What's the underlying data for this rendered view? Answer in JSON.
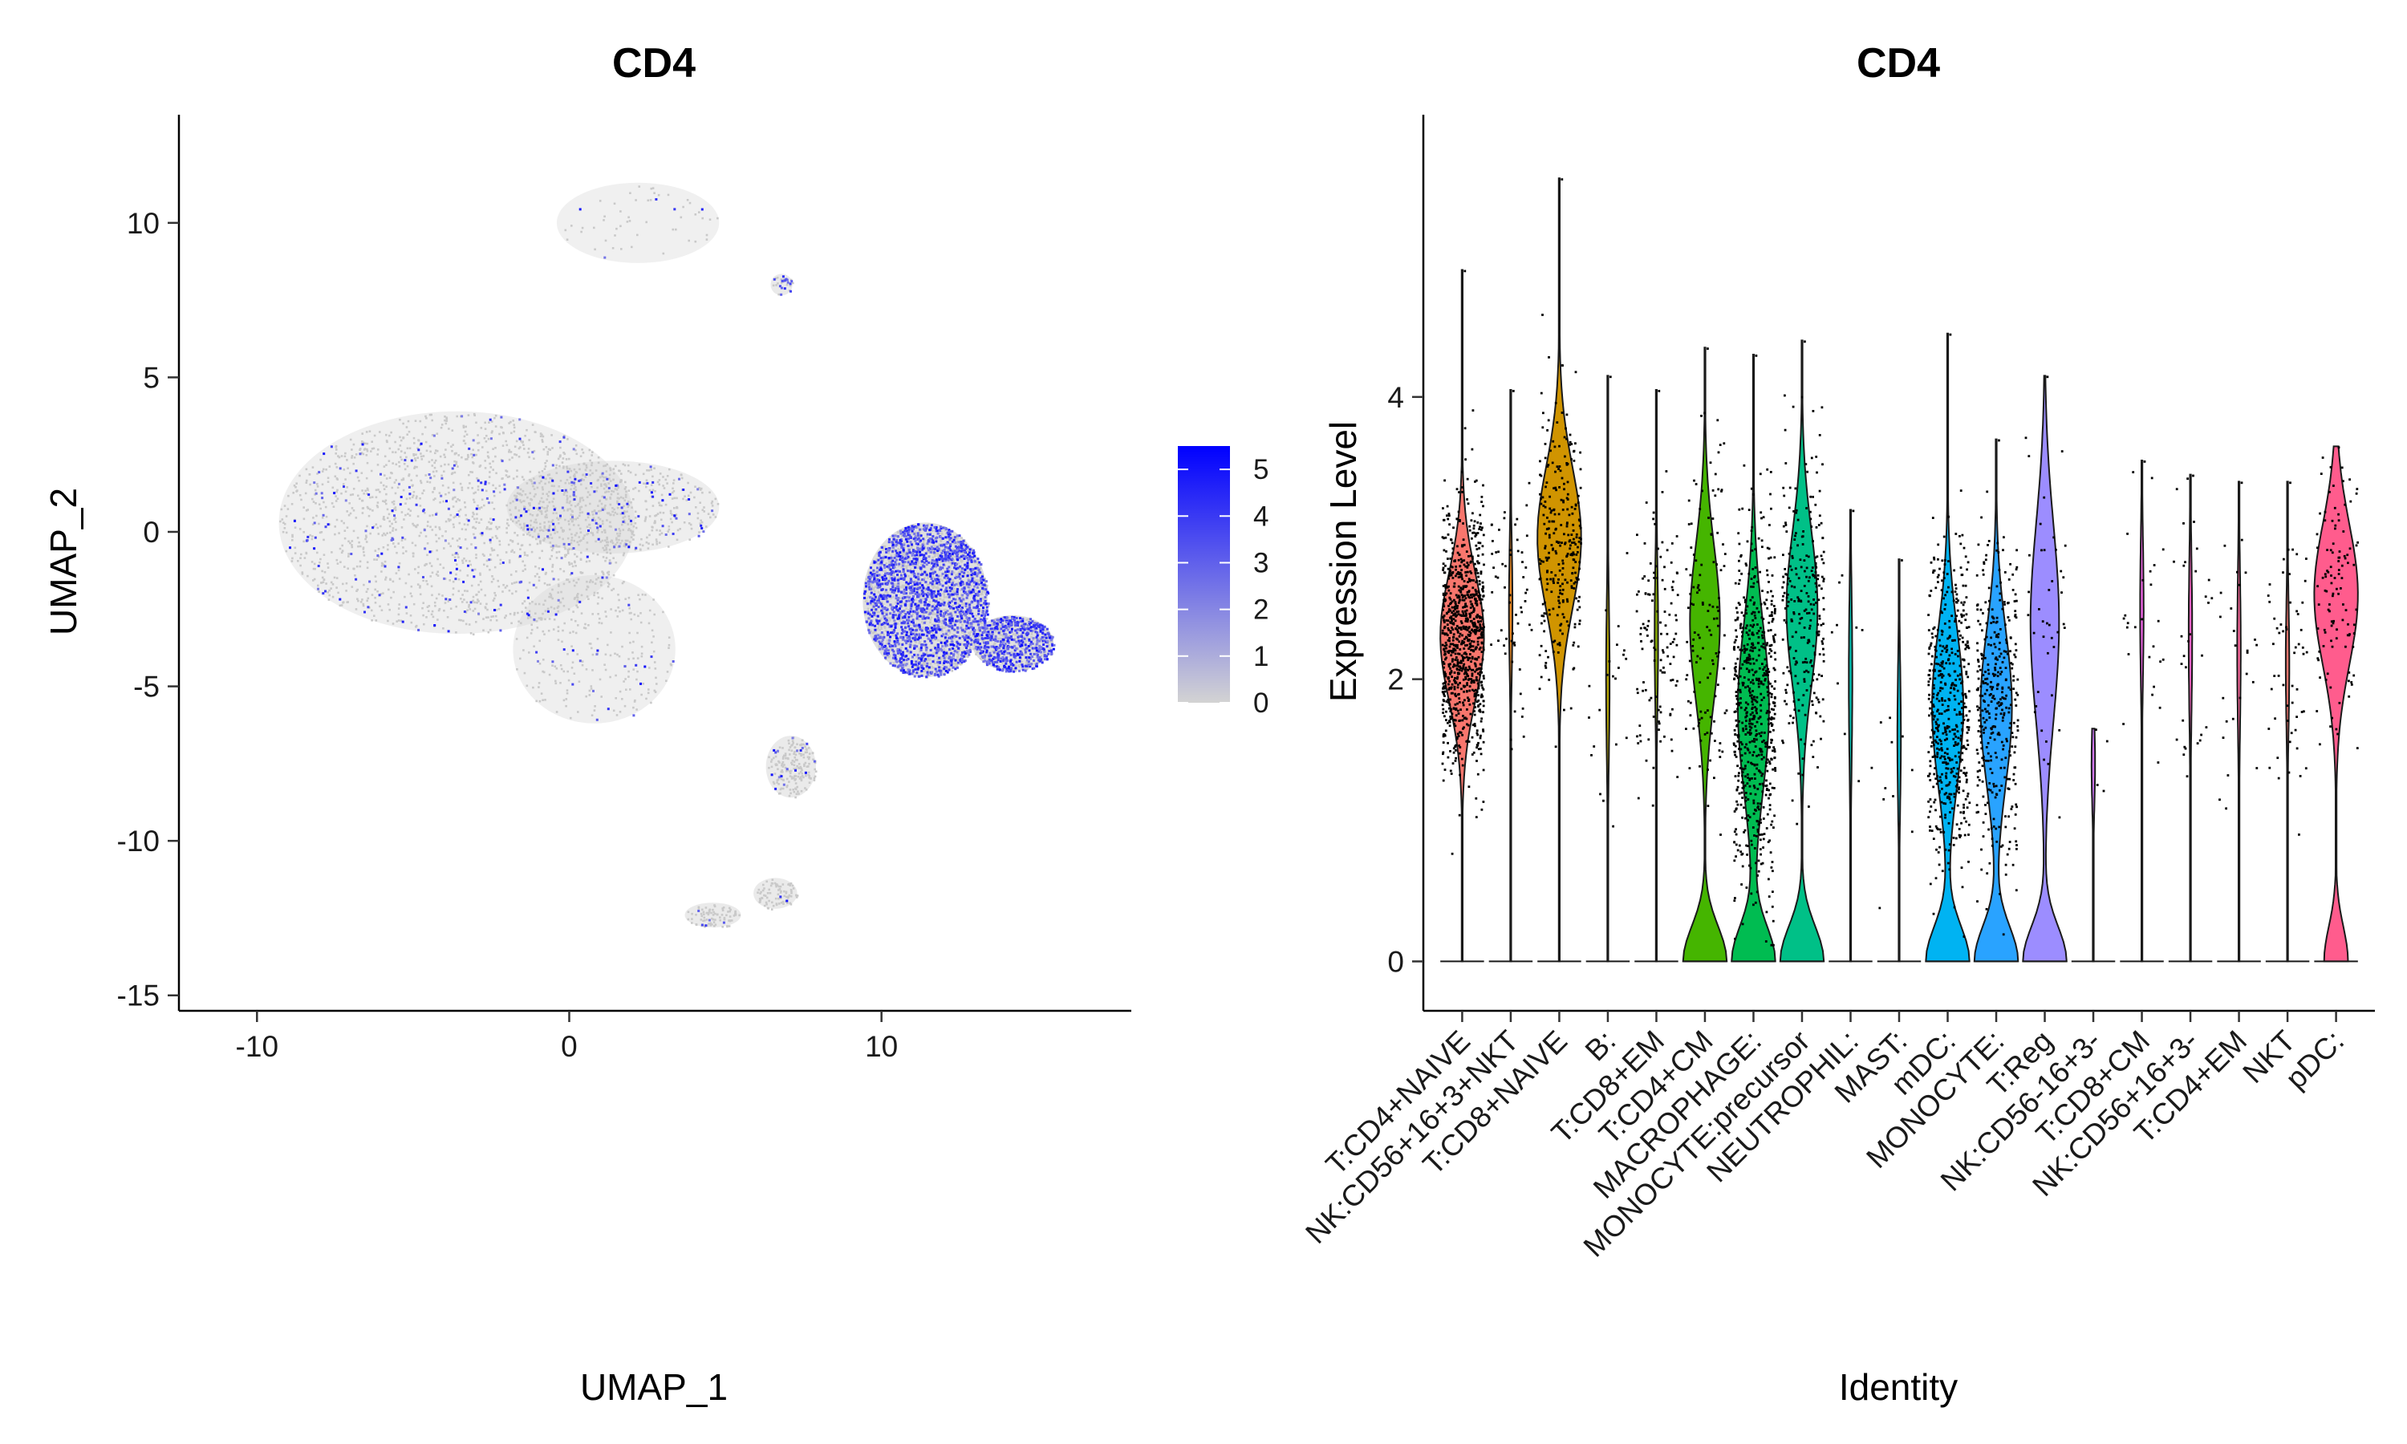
{
  "chart_data": [
    {
      "type": "scatter",
      "title": "CD4",
      "xlabel": "UMAP_1",
      "ylabel": "UMAP_2",
      "xlim": [
        -12.5,
        18
      ],
      "ylim": [
        -15.5,
        13.5
      ],
      "x_ticks": [
        -10,
        0,
        10
      ],
      "y_ticks": [
        -15,
        -10,
        -5,
        0,
        5,
        10
      ],
      "x_tick_labels": [
        "-10",
        "0",
        "10"
      ],
      "y_tick_labels": [
        "-15",
        "-10",
        "-5",
        "0",
        "5",
        "10"
      ],
      "grid": false,
      "color_scale": {
        "low_color": "#d3d3d3",
        "high_color": "#0000ff",
        "min": 0,
        "max": 5.5,
        "ticks": [
          0,
          1,
          2,
          3,
          4,
          5
        ],
        "tick_labels": [
          "0",
          "1",
          "2",
          "3",
          "4",
          "5"
        ]
      },
      "legend_position": "right",
      "clusters": [
        {
          "cx": -3.6,
          "cy": 0.3,
          "rx": 5.7,
          "ry": 3.6,
          "density": 0.1,
          "expr": 0.12
        },
        {
          "cx": 1.4,
          "cy": 0.8,
          "rx": 3.4,
          "ry": 1.5,
          "density": 0.12,
          "expr": 0.1
        },
        {
          "cx": 0.8,
          "cy": -3.8,
          "rx": 2.6,
          "ry": 2.4,
          "density": 0.05,
          "expr": 0.06
        },
        {
          "cx": 2.2,
          "cy": 10.0,
          "rx": 2.6,
          "ry": 1.3,
          "density": 0.02,
          "expr": 0.06
        },
        {
          "cx": 11.4,
          "cy": -2.2,
          "rx": 2.0,
          "ry": 2.5,
          "density": 0.85,
          "expr": 0.55
        },
        {
          "cx": 14.2,
          "cy": -3.6,
          "rx": 1.3,
          "ry": 0.9,
          "density": 0.85,
          "expr": 0.55
        },
        {
          "cx": 7.1,
          "cy": -7.6,
          "rx": 0.8,
          "ry": 1.0,
          "density": 0.3,
          "expr": 0.1
        },
        {
          "cx": 6.6,
          "cy": -11.7,
          "rx": 0.7,
          "ry": 0.5,
          "density": 0.3,
          "expr": 0.06
        },
        {
          "cx": 4.6,
          "cy": -12.4,
          "rx": 0.9,
          "ry": 0.4,
          "density": 0.3,
          "expr": 0.06
        },
        {
          "cx": 6.8,
          "cy": 8.0,
          "rx": 0.35,
          "ry": 0.35,
          "density": 0.3,
          "expr": 0.45
        }
      ]
    },
    {
      "type": "violin",
      "title": "CD4",
      "xlabel": "Identity",
      "ylabel": "Expression Level",
      "ylim": [
        -0.35,
        6.0
      ],
      "y_ticks": [
        0,
        2,
        4
      ],
      "y_tick_labels": [
        "0",
        "2",
        "4"
      ],
      "grid": false,
      "categories": [
        "T:CD4+NAIVE",
        "NK:CD56+16+3+NKT",
        "T:CD8+NAIVE",
        "B:",
        "T:CD8+EM",
        "T:CD4+CM",
        "MACROPHAGE:",
        "MONOCYTE:precursor",
        "NEUTROPHIL:",
        "MAST:",
        "mDC:",
        "MONOCYTE:",
        "T:Reg",
        "NK:CD56-16+3-",
        "T:CD8+CM",
        "NK:CD56+16+3-",
        "T:CD4+EM",
        "NKT",
        "pDC:"
      ],
      "colors": [
        "#F8766D",
        "#E7851E",
        "#D09400",
        "#B2A100",
        "#89AC00",
        "#45B500",
        "#00BC51",
        "#00C087",
        "#00C0B2",
        "#00BCD6",
        "#00B3F2",
        "#29A3FF",
        "#9C8DFF",
        "#D277FF",
        "#F166E8",
        "#FF61C7",
        "#FF689E",
        "#F8766D",
        "#FF5C8D"
      ],
      "series": [
        {
          "max": 4.9,
          "zero_frac": 0.02,
          "median": 2.3,
          "spread": 0.45,
          "n_points": 900,
          "kde_tail": 0.0
        },
        {
          "max": 4.05,
          "zero_frac": 0.85,
          "median": 2.5,
          "spread": 0.45,
          "n_points": 60,
          "kde_tail": 0.0
        },
        {
          "max": 5.55,
          "zero_frac": 0.4,
          "median": 3.0,
          "spread": 0.5,
          "n_points": 280,
          "kde_tail": 0.0
        },
        {
          "max": 4.15,
          "zero_frac": 0.95,
          "median": 2.0,
          "spread": 0.55,
          "n_points": 22,
          "kde_tail": 0.0
        },
        {
          "max": 4.05,
          "zero_frac": 0.85,
          "median": 2.3,
          "spread": 0.5,
          "n_points": 120,
          "kde_tail": 0.0
        },
        {
          "max": 4.35,
          "zero_frac": 0.7,
          "median": 2.4,
          "spread": 0.55,
          "n_points": 120,
          "kde_tail": 0.35
        },
        {
          "max": 4.3,
          "zero_frac": 0.55,
          "median": 1.8,
          "spread": 0.6,
          "n_points": 650,
          "kde_tail": 0.5
        },
        {
          "max": 4.4,
          "zero_frac": 0.6,
          "median": 2.5,
          "spread": 0.55,
          "n_points": 260,
          "kde_tail": 0.45
        },
        {
          "max": 3.2,
          "zero_frac": 0.97,
          "median": 2.0,
          "spread": 0.6,
          "n_points": 10,
          "kde_tail": 0.0
        },
        {
          "max": 2.85,
          "zero_frac": 0.97,
          "median": 1.6,
          "spread": 0.5,
          "n_points": 10,
          "kde_tail": 0.0
        },
        {
          "max": 4.45,
          "zero_frac": 0.55,
          "median": 1.8,
          "spread": 0.55,
          "n_points": 520,
          "kde_tail": 0.5
        },
        {
          "max": 3.7,
          "zero_frac": 0.55,
          "median": 1.8,
          "spread": 0.55,
          "n_points": 360,
          "kde_tail": 0.5
        },
        {
          "max": 4.15,
          "zero_frac": 0.55,
          "median": 2.4,
          "spread": 0.7,
          "n_points": 40,
          "kde_tail": 0.55
        },
        {
          "max": 1.65,
          "zero_frac": 0.98,
          "median": 1.4,
          "spread": 0.3,
          "n_points": 3,
          "kde_tail": 0.0
        },
        {
          "max": 3.55,
          "zero_frac": 0.95,
          "median": 2.5,
          "spread": 0.5,
          "n_points": 25,
          "kde_tail": 0.0
        },
        {
          "max": 3.45,
          "zero_frac": 0.95,
          "median": 2.3,
          "spread": 0.55,
          "n_points": 30,
          "kde_tail": 0.0
        },
        {
          "max": 3.4,
          "zero_frac": 0.95,
          "median": 2.2,
          "spread": 0.55,
          "n_points": 25,
          "kde_tail": 0.0
        },
        {
          "max": 3.4,
          "zero_frac": 0.9,
          "median": 2.1,
          "spread": 0.45,
          "n_points": 55,
          "kde_tail": 0.0
        },
        {
          "max": 3.65,
          "zero_frac": 0.2,
          "median": 2.6,
          "spread": 0.5,
          "n_points": 110,
          "kde_tail": 0.35
        }
      ]
    }
  ]
}
